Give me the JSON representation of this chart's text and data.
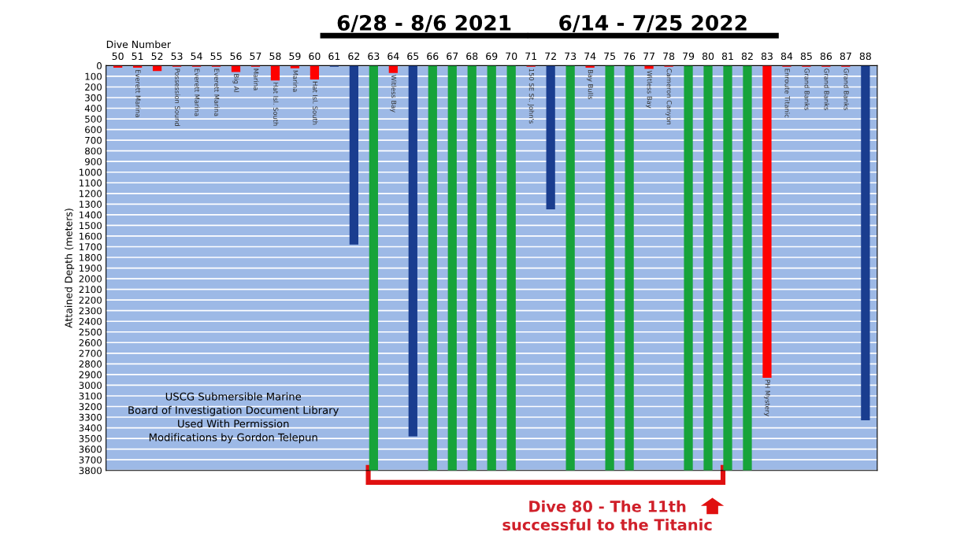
{
  "chart_data": {
    "type": "bar",
    "xlabel": "Dive Number",
    "ylabel": "Attained Depth (meters)",
    "categories": [
      "50",
      "51",
      "52",
      "53",
      "54",
      "55",
      "56",
      "57",
      "58",
      "59",
      "60",
      "61",
      "62",
      "63",
      "64",
      "65",
      "66",
      "67",
      "68",
      "69",
      "70",
      "71",
      "72",
      "73",
      "74",
      "75",
      "76",
      "77",
      "78",
      "79",
      "80",
      "81",
      "82",
      "83",
      "84",
      "85",
      "86",
      "87",
      "88"
    ],
    "values": [
      20,
      20,
      50,
      10,
      10,
      10,
      60,
      10,
      140,
      25,
      130,
      10,
      1680,
      3800,
      70,
      3480,
      3800,
      3800,
      3800,
      3800,
      3800,
      10,
      1350,
      3800,
      20,
      3800,
      3800,
      30,
      10,
      3800,
      3800,
      3800,
      3800,
      2930,
      10,
      10,
      10,
      10,
      3330
    ],
    "colors": [
      "#ff0000",
      "#ff0000",
      "#ff0000",
      "#ff0000",
      "#ff0000",
      "#ff0000",
      "#ff0000",
      "#ff0000",
      "#ff0000",
      "#ff0000",
      "#ff0000",
      "#1a3d8f",
      "#1a3d8f",
      "#17a33a",
      "#ff0000",
      "#1a3d8f",
      "#17a33a",
      "#17a33a",
      "#17a33a",
      "#17a33a",
      "#17a33a",
      "#ff0000",
      "#1a3d8f",
      "#17a33a",
      "#ff0000",
      "#17a33a",
      "#17a33a",
      "#ff0000",
      "#ff0000",
      "#17a33a",
      "#17a33a",
      "#17a33a",
      "#17a33a",
      "#ff0000",
      "#ff0000",
      "#ff0000",
      "#ff0000",
      "#ff0000",
      "#1a3d8f"
    ],
    "ylim": [
      3800,
      0
    ],
    "yticks": [
      0,
      100,
      200,
      300,
      400,
      500,
      600,
      700,
      800,
      900,
      1000,
      1100,
      1200,
      1300,
      1400,
      1500,
      1600,
      1700,
      1800,
      1900,
      2000,
      2100,
      2200,
      2300,
      2400,
      2500,
      2600,
      2700,
      2800,
      2900,
      3000,
      3100,
      3200,
      3300,
      3400,
      3500,
      3600,
      3700,
      3800
    ],
    "grid": "y",
    "legend": false,
    "annotations": [
      "6/28 - 8/6 2021",
      "6/14 - 7/25 2022",
      "USCG Submersible Marine\nBoard of Investigation Document Library\nUsed With Permission\nModifications by Gordon Telepun",
      "Dive 80 - The 11th\nsuccessful to the Titanic",
      {
        "text": "Everett Marina",
        "x": "51",
        "y": 20
      },
      {
        "text": "Possession Sound",
        "x": "53",
        "y": 10
      },
      {
        "text": "Everett Marina",
        "x": "54",
        "y": 10
      },
      {
        "text": "Everett Marina",
        "x": "55",
        "y": 10
      },
      {
        "text": "Big Al",
        "x": "56",
        "y": 60
      },
      {
        "text": "Marina",
        "x": "57",
        "y": 10
      },
      {
        "text": "Hat Isl. South",
        "x": "58",
        "y": 140
      },
      {
        "text": "Marina",
        "x": "59",
        "y": 25
      },
      {
        "text": "Hat Isl. South",
        "x": "60",
        "y": 130
      },
      {
        "text": "Witless Bay",
        "x": "64",
        "y": 70
      },
      {
        "text": "150 SE St. John's",
        "x": "71",
        "y": 10
      },
      {
        "text": "Bay Bulls",
        "x": "74",
        "y": 20
      },
      {
        "text": "Witless Bay",
        "x": "77",
        "y": 30
      },
      {
        "text": "Cameron Canyon",
        "x": "78",
        "y": 10
      },
      {
        "text": "PH Mystery",
        "x": "83",
        "y": 2930
      },
      {
        "text": "Enroute Titanic",
        "x": "84",
        "y": 10
      },
      {
        "text": "Grand Banks",
        "x": "85",
        "y": 10
      },
      {
        "text": "Grand Banks",
        "x": "86",
        "y": 10
      },
      {
        "text": "Grand Banks",
        "x": "87",
        "y": 10
      }
    ]
  }
}
